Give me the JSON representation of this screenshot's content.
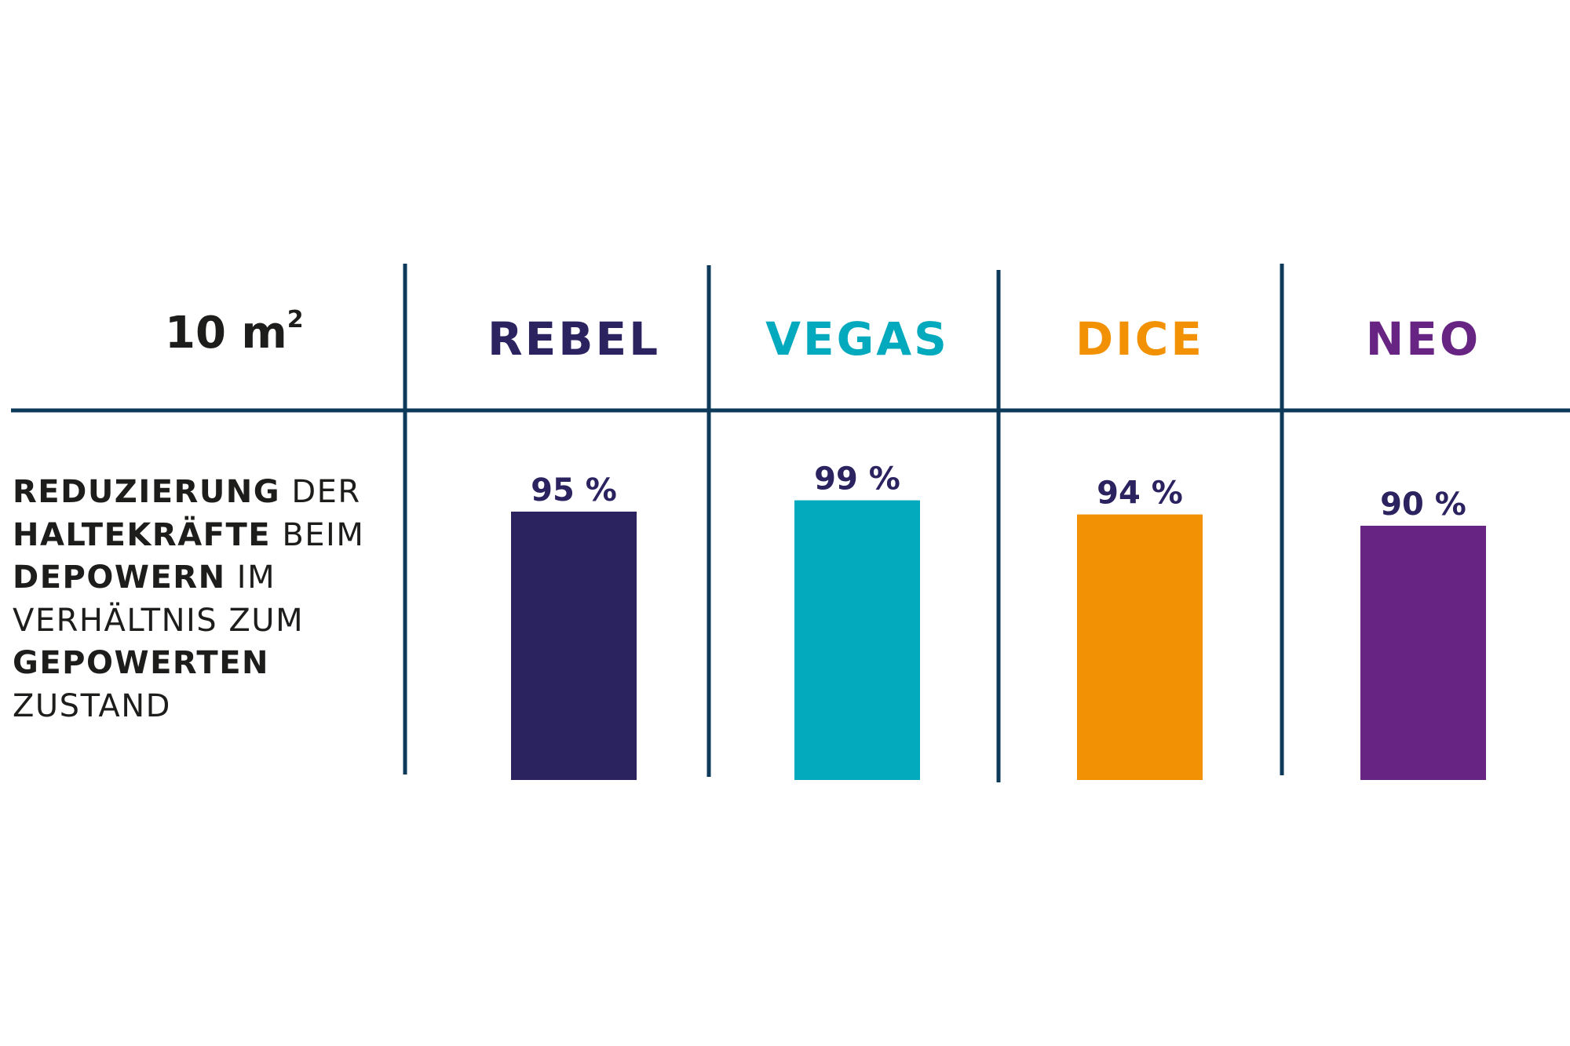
{
  "header": {
    "size_number": "10 m",
    "size_sup": "2"
  },
  "row_label": {
    "lines": [
      {
        "bold": "REDUZIERUNG",
        "normal": " DER"
      },
      {
        "bold": "HALTEKRÄFTE",
        "normal": " BEIM"
      },
      {
        "bold": "DEPOWERN",
        "normal": " IM"
      },
      {
        "bold": "",
        "normal": "VERHÄLTNIS ZUM"
      },
      {
        "bold": "GEPOWERTEN",
        "normal": ""
      },
      {
        "bold": "",
        "normal": "ZUSTAND"
      }
    ]
  },
  "colors": {
    "grid": "#0e3a5a",
    "value_text": "#2b2260"
  },
  "chart_data": {
    "type": "bar",
    "categories": [
      "REBEL",
      "VEGAS",
      "DICE",
      "NEO"
    ],
    "values": [
      95,
      99,
      94,
      90
    ],
    "value_labels": [
      "95 %",
      "99 %",
      "94 %",
      "90 %"
    ],
    "colors": [
      "#2b2260",
      "#03a9bc",
      "#f29104",
      "#672483"
    ],
    "unit": "%",
    "grid": false,
    "legend": "none"
  }
}
